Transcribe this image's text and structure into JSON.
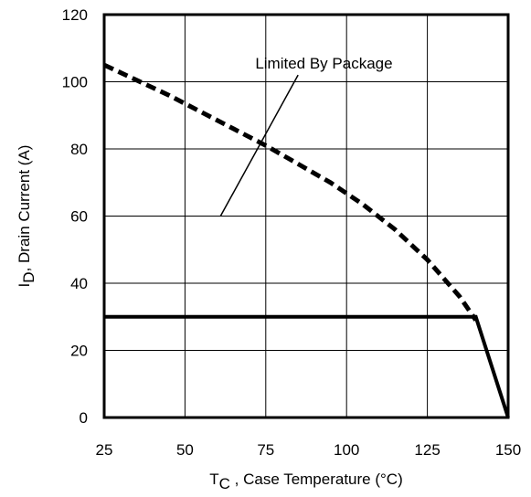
{
  "chart_data": {
    "type": "line",
    "xlabel": {
      "main": "T",
      "sub": "C",
      "rest": " , Case Temperature (°C)"
    },
    "ylabel": {
      "main": "I",
      "sub": "D",
      "rest": ",  Drain Current (A)"
    },
    "xlim": [
      25,
      150
    ],
    "ylim": [
      0,
      120
    ],
    "x_ticks": [
      25,
      50,
      75,
      100,
      125,
      150
    ],
    "y_ticks": [
      0,
      20,
      40,
      60,
      80,
      100,
      120
    ],
    "grid": true,
    "series": [
      {
        "style": "dashed",
        "x": [
          25,
          35,
          45,
          55,
          65,
          75,
          85,
          95,
          105,
          115,
          125,
          135,
          140
        ],
        "y": [
          105,
          100.5,
          96,
          91,
          86,
          81,
          75.5,
          70,
          63.5,
          56,
          47,
          36,
          29
        ]
      },
      {
        "style": "solid",
        "x": [
          25,
          140,
          150
        ],
        "y": [
          30,
          30,
          0
        ]
      }
    ],
    "annotations": [
      {
        "text": "Limited By Package",
        "text_x": 93,
        "text_y": 104,
        "pointer_from": [
          85,
          102
        ],
        "pointer_to": [
          61,
          60
        ]
      }
    ]
  }
}
